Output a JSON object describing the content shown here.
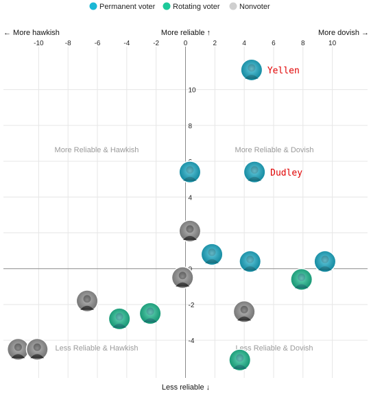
{
  "legend": [
    {
      "label": "Permanent voter",
      "color": "#1ab8d6"
    },
    {
      "label": "Rotating voter",
      "color": "#1dc99a"
    },
    {
      "label": "Nonvoter",
      "color": "#cfcfcf"
    }
  ],
  "axis_titles": {
    "left": "← More hawkish",
    "top": "More reliable ↑",
    "right": "More dovish →",
    "bottom": "Less reliable ↓"
  },
  "quadrants": {
    "top_left": "More Reliable & Hawkish",
    "top_right": "More Reliable & Dovish",
    "bottom_left": "Less Reliable & Hawkish",
    "bottom_right": "Less Reliable & Dovish"
  },
  "chart_data": {
    "type": "scatter",
    "x_ticks": [
      -10,
      -8,
      -6,
      -4,
      -2,
      0,
      2,
      4,
      6,
      8,
      10
    ],
    "y_ticks": [
      -4,
      -2,
      0,
      2,
      4,
      6,
      8,
      10
    ],
    "xlim": [
      -12.4,
      12.4
    ],
    "ylim": [
      -6.1,
      12.4
    ],
    "grid": true,
    "points": [
      {
        "x": 4.5,
        "y": 11.1,
        "group": "Permanent voter",
        "label": "Yellen"
      },
      {
        "x": 4.7,
        "y": 5.4,
        "group": "Permanent voter",
        "label": "Dudley"
      },
      {
        "x": 0.3,
        "y": 5.4,
        "group": "Permanent voter",
        "label": ""
      },
      {
        "x": 0.3,
        "y": 2.1,
        "group": "Nonvoter",
        "label": ""
      },
      {
        "x": 1.8,
        "y": 0.8,
        "group": "Permanent voter",
        "label": ""
      },
      {
        "x": 4.4,
        "y": 0.4,
        "group": "Permanent voter",
        "label": ""
      },
      {
        "x": 9.5,
        "y": 0.4,
        "group": "Permanent voter",
        "label": ""
      },
      {
        "x": 7.9,
        "y": -0.6,
        "group": "Rotating voter",
        "label": ""
      },
      {
        "x": -0.2,
        "y": -0.5,
        "group": "Nonvoter",
        "label": ""
      },
      {
        "x": -6.7,
        "y": -1.8,
        "group": "Nonvoter",
        "label": ""
      },
      {
        "x": -4.5,
        "y": -2.8,
        "group": "Rotating voter",
        "label": ""
      },
      {
        "x": -2.4,
        "y": -2.5,
        "group": "Rotating voter",
        "label": ""
      },
      {
        "x": 4.0,
        "y": -2.4,
        "group": "Nonvoter",
        "label": ""
      },
      {
        "x": -11.4,
        "y": -4.5,
        "group": "Nonvoter",
        "label": ""
      },
      {
        "x": -10.1,
        "y": -4.5,
        "group": "Nonvoter",
        "label": ""
      },
      {
        "x": 3.7,
        "y": -5.1,
        "group": "Rotating voter",
        "label": ""
      }
    ]
  }
}
